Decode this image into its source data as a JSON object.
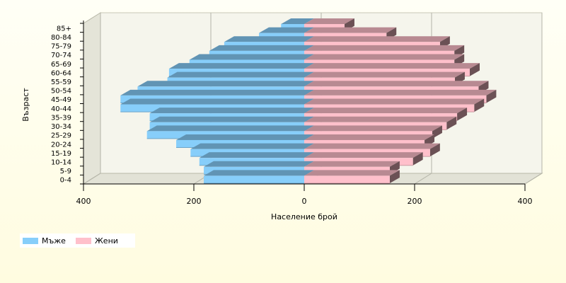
{
  "chart_data": {
    "type": "bar",
    "orientation": "horizontal",
    "style": "population-pyramid-3d",
    "categories": [
      "0-4",
      "5-9",
      "10-14",
      "15-19",
      "20-24",
      "25-29",
      "30-34",
      "35-39",
      "40-44",
      "45-49",
      "50-54",
      "55-59",
      "60-64",
      "65-69",
      "70-74",
      "75-79",
      "80-84",
      "85+"
    ],
    "series": [
      {
        "name": "Мъже",
        "color": "#87cefa",
        "side": "left",
        "values": [
          182,
          182,
          190,
          206,
          232,
          285,
          280,
          280,
          333,
          333,
          302,
          248,
          245,
          208,
          172,
          145,
          82,
          42
        ]
      },
      {
        "name": "Жени",
        "color": "#ffc0cb",
        "side": "right",
        "values": [
          155,
          155,
          197,
          228,
          218,
          232,
          258,
          277,
          308,
          330,
          316,
          273,
          300,
          272,
          272,
          246,
          149,
          73
        ]
      }
    ],
    "xlabel": "Население брой",
    "ylabel": "Възраст",
    "xlim": [
      -400,
      400
    ],
    "x_ticks": [
      {
        "value": -400,
        "label": "400"
      },
      {
        "value": -200,
        "label": "200"
      },
      {
        "value": 0,
        "label": "0"
      },
      {
        "value": 200,
        "label": "200"
      },
      {
        "value": 400,
        "label": "400"
      }
    ],
    "grid": true,
    "legend_position": "bottom-left"
  }
}
